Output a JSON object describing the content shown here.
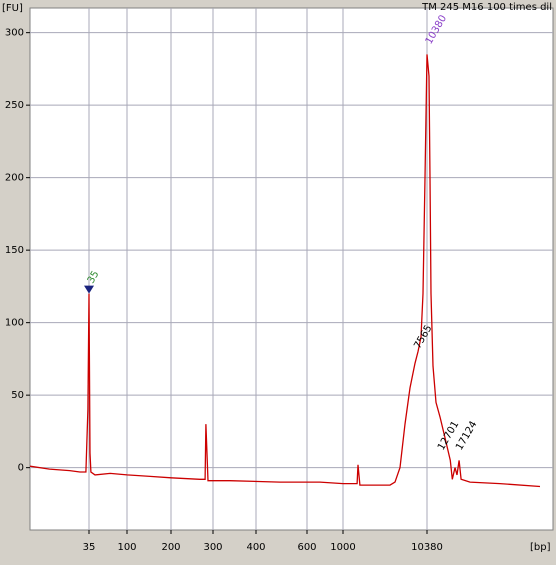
{
  "chart_data": {
    "type": "line",
    "title": "TM 245 M16  100 times dil",
    "y_label": "[FU]",
    "x_label": "[bp]",
    "x_scale": "log",
    "grid": true,
    "xlim": [
      7,
      66500
    ],
    "ylim": [
      -43,
      317
    ],
    "xticks": [
      35,
      100,
      200,
      300,
      400,
      600,
      1000,
      10380
    ],
    "yticks": [
      0,
      50,
      100,
      150,
      200,
      250,
      300
    ],
    "series": [
      {
        "color": "#cc0000",
        "x": [
          7,
          11.9,
          20.7,
          27.3,
          32.2,
          34,
          35,
          36,
          36.9,
          41.3,
          62.9,
          100,
          144,
          200,
          264,
          278,
          280,
          286,
          336,
          484,
          567,
          722,
          1000,
          1480,
          1520,
          1600,
          3700,
          4260,
          4890,
          5620,
          6460,
          7430,
          8080,
          8780,
          9290,
          9820,
          10380,
          10720,
          10900,
          11080,
          11450,
          12040,
          12860,
          14000,
          15230,
          15740,
          16450,
          17000,
          17590,
          18180,
          21060,
          34400,
          66500
        ],
        "values": [
          1,
          -1,
          -2,
          -3,
          -3,
          40,
          120,
          10,
          -3,
          -5,
          -4,
          -5,
          -6,
          -7,
          -8,
          -8,
          30,
          -9,
          -9,
          -10,
          -10,
          -10,
          -11,
          -11,
          2,
          -12,
          -12,
          -10,
          0,
          30,
          55,
          72,
          80,
          90,
          120,
          200,
          285,
          270,
          200,
          120,
          70,
          45,
          35,
          20,
          5,
          -8,
          0,
          -5,
          5,
          -8,
          -10,
          -11,
          -13
        ]
      }
    ],
    "peaks": [
      {
        "bp": 35,
        "fu": 120,
        "color": "#2e8b2e"
      },
      {
        "bp": 7565,
        "fu": 75,
        "color": "#000000"
      },
      {
        "bp": 10380,
        "fu": 285,
        "color": "#8a3fc8"
      },
      {
        "bp": 12701,
        "fu": 5,
        "color": "#000000"
      },
      {
        "bp": 17124,
        "fu": 5,
        "color": "#000000"
      }
    ]
  }
}
